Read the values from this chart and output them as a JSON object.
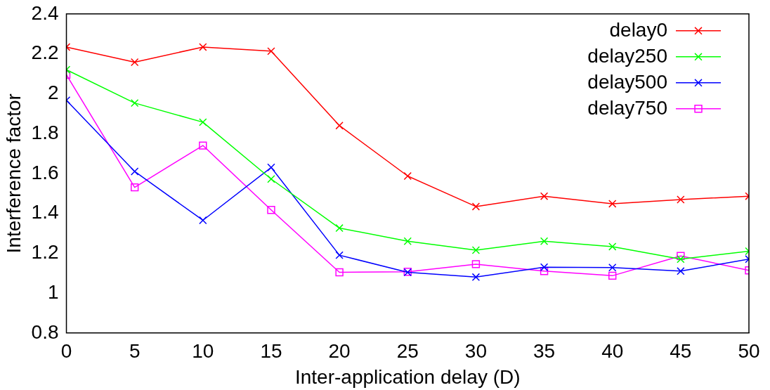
{
  "chart_data": {
    "type": "line",
    "xlabel": "Inter-application delay (D)",
    "ylabel": "Interference factor",
    "x": [
      0,
      5,
      10,
      15,
      20,
      25,
      30,
      35,
      40,
      45,
      50
    ],
    "xlim": [
      0,
      50
    ],
    "xticks": [
      0,
      5,
      10,
      15,
      20,
      25,
      30,
      35,
      40,
      45,
      50
    ],
    "ylim": [
      0.8,
      2.4
    ],
    "yticks": [
      0.8,
      1,
      1.2,
      1.4,
      1.6,
      1.8,
      2,
      2.2,
      2.4
    ],
    "grid": false,
    "legend": "top right",
    "line_style": "solid",
    "series": [
      {
        "name": "delay0",
        "color": "#ff0000",
        "marker": "cross",
        "values": [
          2.234,
          2.158,
          2.234,
          2.213,
          1.84,
          1.587,
          1.434,
          1.486,
          1.448,
          1.469,
          1.486
        ]
      },
      {
        "name": "delay250",
        "color": "#00ff00",
        "marker": "cross",
        "values": [
          2.12,
          1.953,
          1.857,
          1.572,
          1.326,
          1.26,
          1.215,
          1.26,
          1.233,
          1.17,
          1.21
        ]
      },
      {
        "name": "delay500",
        "color": "#0000ff",
        "marker": "cross",
        "values": [
          1.967,
          1.61,
          1.365,
          1.63,
          1.19,
          1.104,
          1.08,
          1.13,
          1.128,
          1.11,
          1.17
        ]
      },
      {
        "name": "delay750",
        "color": "#ff00ff",
        "marker": "square",
        "values": [
          2.095,
          1.53,
          1.74,
          1.417,
          1.104,
          1.107,
          1.145,
          1.11,
          1.087,
          1.186,
          1.114
        ]
      }
    ]
  }
}
